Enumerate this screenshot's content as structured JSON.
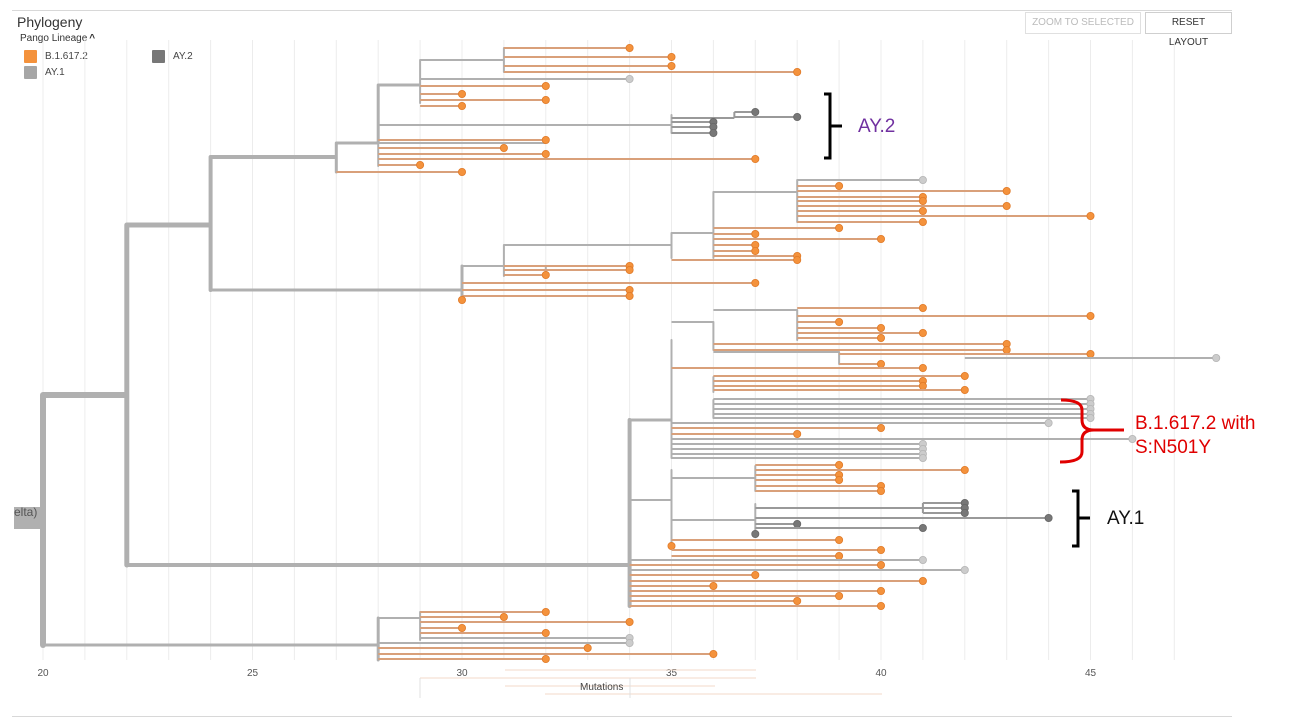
{
  "panel": {
    "title": "Phylogeny",
    "legend_header": "Pango Lineage"
  },
  "legend": [
    {
      "label": "B.1.617.2",
      "color": "#f4923c"
    },
    {
      "label": "AY.2",
      "color": "#777777"
    },
    {
      "label": "AY.1",
      "color": "#a6a6a6"
    }
  ],
  "buttons": {
    "zoom": "ZOOM TO SELECTED",
    "reset": "RESET LAYOUT"
  },
  "axis": {
    "ticks": [
      "20",
      "25",
      "30",
      "35",
      "40",
      "45"
    ],
    "label": "Mutations"
  },
  "root_label": "elta)",
  "annotations": {
    "ay2": "AY.2",
    "b16172_line1": "B.1.617.2 with",
    "b16172_line2": "S:N501Y",
    "ay1": "AY.1"
  },
  "colors": {
    "branch": "#b0b0b0",
    "orange_branch": "#d9a07a",
    "orange_tip": "#f4923c",
    "grey_tip": "#cccccc",
    "dark_tip": "#777777",
    "ay2_annotation": "#7030a0",
    "n501y_annotation": "#e00000"
  }
}
